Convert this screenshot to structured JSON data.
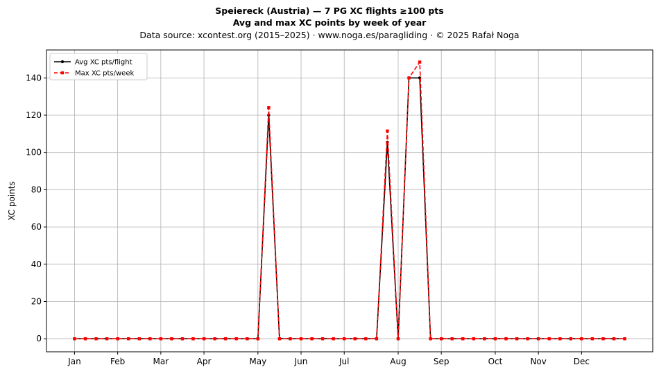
{
  "title": {
    "line1": "Speiereck (Austria)  —  7 PG XC flights ≥100 pts",
    "line2": "Avg and max XC points by week of year",
    "line3": "Data source: xcontest.org (2015–2025)  ·  www.noga.es/paragliding  ·  © 2025 Rafał Noga"
  },
  "chart_data": {
    "type": "line",
    "xlabel": "",
    "ylabel": "XC points",
    "x_tick_labels": [
      "Jan",
      "Feb",
      "Mar",
      "Apr",
      "May",
      "Jun",
      "Jul",
      "Aug",
      "Sep",
      "Oct",
      "Nov",
      "Dec"
    ],
    "x_tick_weeks": [
      1,
      5,
      9,
      13,
      18,
      22,
      26,
      31,
      35,
      40,
      44,
      48
    ],
    "xlim": [
      -1.6,
      54.6
    ],
    "ylim": [
      -7,
      155
    ],
    "y_ticks": [
      0,
      20,
      40,
      60,
      80,
      100,
      120,
      140
    ],
    "grid": true,
    "legend": "top-left",
    "x": [
      1,
      2,
      3,
      4,
      5,
      6,
      7,
      8,
      9,
      10,
      11,
      12,
      13,
      14,
      15,
      16,
      17,
      18,
      19,
      20,
      21,
      22,
      23,
      24,
      25,
      26,
      27,
      28,
      29,
      30,
      31,
      32,
      33,
      34,
      35,
      36,
      37,
      38,
      39,
      40,
      41,
      42,
      43,
      44,
      45,
      46,
      47,
      48,
      49,
      50,
      51,
      52
    ],
    "series": [
      {
        "name": "Avg XC pts/flight",
        "color": "#000000",
        "marker": "circle",
        "linestyle": "solid",
        "values": [
          0,
          0,
          0,
          0,
          0,
          0,
          0,
          0,
          0,
          0,
          0,
          0,
          0,
          0,
          0,
          0,
          0,
          0,
          120,
          0,
          0,
          0,
          0,
          0,
          0,
          0,
          0,
          0,
          0,
          105.5,
          0,
          140,
          140,
          0,
          0,
          0,
          0,
          0,
          0,
          0,
          0,
          0,
          0,
          0,
          0,
          0,
          0,
          0,
          0,
          0,
          0,
          0
        ]
      },
      {
        "name": "Max XC pts/week",
        "color": "#ff0000",
        "marker": "square",
        "linestyle": "dashed",
        "values": [
          0,
          0,
          0,
          0,
          0,
          0,
          0,
          0,
          0,
          0,
          0,
          0,
          0,
          0,
          0,
          0,
          0,
          0,
          124,
          0,
          0,
          0,
          0,
          0,
          0,
          0,
          0,
          0,
          0,
          111.5,
          0,
          140,
          148.5,
          0,
          0,
          0,
          0,
          0,
          0,
          0,
          0,
          0,
          0,
          0,
          0,
          0,
          0,
          0,
          0,
          0,
          0,
          0
        ]
      }
    ]
  }
}
